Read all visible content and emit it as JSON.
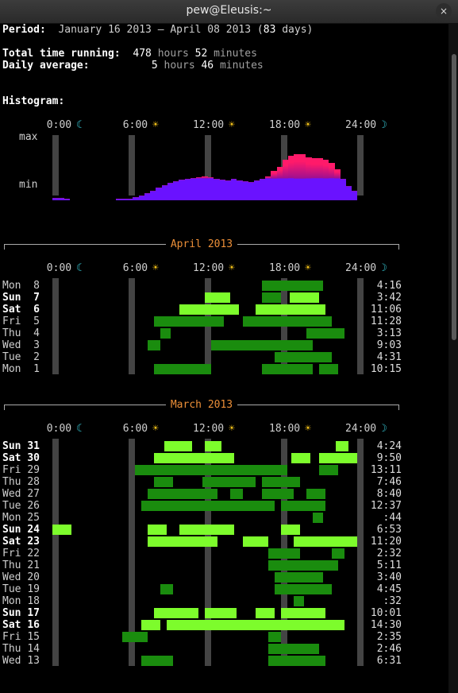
{
  "window": {
    "title": "pew@Eleusis:~",
    "close_symbol": "×"
  },
  "summary": {
    "period_label": "Period:",
    "period_start": "January 16 2013",
    "period_dash": "–",
    "period_end": "April 08 2013",
    "period_days": "83",
    "period_days_unit": "days",
    "total_label": "Total time running:",
    "total_hours": "478",
    "total_minutes": "52",
    "daily_label": "Daily average:",
    "daily_hours": "5",
    "daily_minutes": "46",
    "hours_word": "hours",
    "minutes_word": "minutes"
  },
  "histogram": {
    "label": "Histogram:",
    "max_label": "max",
    "min_label": "min",
    "top_color": "#ff1a6a",
    "bottom_color": "#6a12ff",
    "levels": [
      0.05,
      0.05,
      0.03,
      0,
      0,
      0,
      0,
      0,
      0,
      0,
      0,
      0.03,
      0.03,
      0.03,
      0.07,
      0.1,
      0.15,
      0.2,
      0.27,
      0.32,
      0.37,
      0.4,
      0.43,
      0.45,
      0.47,
      0.48,
      0.5,
      0.48,
      0.45,
      0.43,
      0.42,
      0.45,
      0.42,
      0.4,
      0.38,
      0.42,
      0.45,
      0.5,
      0.62,
      0.7,
      0.85,
      0.93,
      0.97,
      0.97,
      0.9,
      0.88,
      0.88,
      0.85,
      0.78,
      0.65,
      0.45,
      0.3,
      0.2
    ]
  },
  "axis": {
    "ticks": [
      "0:00",
      "6:00",
      "12:00",
      "18:00",
      "24:00"
    ],
    "icons": [
      "moon-icon",
      "sun-icon",
      "sun-icon",
      "sun-icon",
      "moon-icon"
    ],
    "moon_glyph": "☾",
    "moon_end_glyph": "☽",
    "sun_glyph": "☀"
  },
  "colors": {
    "bright_green": "#7dfc2c",
    "dark_green": "#1a8c0e",
    "bar_gray": "#444444",
    "section_label": "#ec8f38"
  },
  "months": [
    {
      "label": "April 2013",
      "days": [
        {
          "dow": "Mon",
          "day": "8",
          "total": "4:16",
          "weekend": false,
          "segs": [
            [
              16.5,
              21.3,
              0
            ]
          ]
        },
        {
          "dow": "Sun",
          "day": "7",
          "total": "3:42",
          "weekend": true,
          "segs": [
            [
              12,
              14,
              1
            ],
            [
              16.5,
              18,
              0
            ],
            [
              18.7,
              21,
              1
            ]
          ]
        },
        {
          "dow": "Sat",
          "day": "6",
          "total": "11:06",
          "weekend": true,
          "segs": [
            [
              10,
              14.7,
              1
            ],
            [
              16,
              21.5,
              1
            ]
          ]
        },
        {
          "dow": "Fri",
          "day": "5",
          "total": "11:28",
          "weekend": false,
          "segs": [
            [
              8,
              13.5,
              0
            ],
            [
              15,
              22,
              0
            ]
          ]
        },
        {
          "dow": "Thu",
          "day": "4",
          "total": "3:13",
          "weekend": false,
          "segs": [
            [
              8.5,
              9.3,
              0
            ],
            [
              20,
              23,
              0
            ]
          ]
        },
        {
          "dow": "Wed",
          "day": "3",
          "total": "9:03",
          "weekend": false,
          "segs": [
            [
              7.5,
              8.5,
              0
            ],
            [
              12.5,
              20.5,
              0
            ]
          ]
        },
        {
          "dow": "Tue",
          "day": "2",
          "total": "4:31",
          "weekend": false,
          "segs": [
            [
              17.5,
              22,
              0
            ]
          ]
        },
        {
          "dow": "Mon",
          "day": "1",
          "total": "10:15",
          "weekend": false,
          "segs": [
            [
              8,
              12.5,
              0
            ],
            [
              16.5,
              20.5,
              0
            ],
            [
              21,
              22.5,
              0
            ]
          ]
        }
      ]
    },
    {
      "label": "March 2013",
      "days": [
        {
          "dow": "Sun",
          "day": "31",
          "total": "4:24",
          "weekend": true,
          "segs": [
            [
              8.8,
              11,
              1
            ],
            [
              12,
              13.3,
              1
            ],
            [
              22.3,
              23.3,
              1
            ]
          ]
        },
        {
          "dow": "Sat",
          "day": "30",
          "total": "9:50",
          "weekend": true,
          "segs": [
            [
              8,
              14.3,
              1
            ],
            [
              18.8,
              20.3,
              1
            ],
            [
              21,
              24,
              1
            ]
          ]
        },
        {
          "dow": "Fri",
          "day": "29",
          "total": "13:11",
          "weekend": false,
          "segs": [
            [
              6.5,
              18.5,
              0
            ],
            [
              21,
              22.5,
              0
            ]
          ]
        },
        {
          "dow": "Thu",
          "day": "28",
          "total": "7:46",
          "weekend": false,
          "segs": [
            [
              8,
              9.5,
              0
            ],
            [
              11.8,
              16,
              0
            ],
            [
              16.5,
              19.5,
              0
            ]
          ]
        },
        {
          "dow": "Wed",
          "day": "27",
          "total": "8:40",
          "weekend": false,
          "segs": [
            [
              7.5,
              13,
              0
            ],
            [
              14,
              15,
              0
            ],
            [
              16.5,
              19,
              0
            ],
            [
              20,
              21.5,
              0
            ]
          ]
        },
        {
          "dow": "Tue",
          "day": "26",
          "total": "12:37",
          "weekend": false,
          "segs": [
            [
              7,
              17.5,
              0
            ],
            [
              18,
              21.5,
              0
            ]
          ]
        },
        {
          "dow": "Mon",
          "day": "25",
          "total": ":44",
          "weekend": false,
          "segs": [
            [
              20.5,
              21.3,
              0
            ]
          ]
        },
        {
          "dow": "Sun",
          "day": "24",
          "total": "6:53",
          "weekend": true,
          "segs": [
            [
              0,
              1.5,
              1
            ],
            [
              7.5,
              9,
              1
            ],
            [
              10,
              14.3,
              1
            ],
            [
              18,
              19.5,
              1
            ]
          ]
        },
        {
          "dow": "Sat",
          "day": "23",
          "total": "11:20",
          "weekend": true,
          "segs": [
            [
              7.5,
              13,
              1
            ],
            [
              15,
              17,
              1
            ],
            [
              19,
              24,
              1
            ]
          ]
        },
        {
          "dow": "Fri",
          "day": "22",
          "total": "2:32",
          "weekend": false,
          "segs": [
            [
              17,
              19.5,
              0
            ],
            [
              22,
              23,
              0
            ]
          ]
        },
        {
          "dow": "Thu",
          "day": "21",
          "total": "5:11",
          "weekend": false,
          "segs": [
            [
              17,
              22.5,
              0
            ]
          ]
        },
        {
          "dow": "Wed",
          "day": "20",
          "total": "3:40",
          "weekend": false,
          "segs": [
            [
              17.5,
              21.3,
              0
            ]
          ]
        },
        {
          "dow": "Tue",
          "day": "19",
          "total": "4:45",
          "weekend": false,
          "segs": [
            [
              8.5,
              9.5,
              0
            ],
            [
              17.5,
              22,
              0
            ]
          ]
        },
        {
          "dow": "Mon",
          "day": "18",
          "total": ":32",
          "weekend": false,
          "segs": [
            [
              19,
              19.8,
              0
            ]
          ]
        },
        {
          "dow": "Sun",
          "day": "17",
          "total": "10:01",
          "weekend": true,
          "segs": [
            [
              8,
              11.5,
              1
            ],
            [
              12,
              14.5,
              1
            ],
            [
              16,
              17.5,
              1
            ],
            [
              18,
              21.5,
              1
            ]
          ]
        },
        {
          "dow": "Sat",
          "day": "16",
          "total": "14:30",
          "weekend": true,
          "segs": [
            [
              7,
              8.5,
              1
            ],
            [
              9,
              23,
              1
            ]
          ]
        },
        {
          "dow": "Fri",
          "day": "15",
          "total": "2:35",
          "weekend": false,
          "segs": [
            [
              5.5,
              7.5,
              0
            ],
            [
              17,
              18,
              0
            ]
          ]
        },
        {
          "dow": "Thu",
          "day": "14",
          "total": "2:46",
          "weekend": false,
          "segs": [
            [
              17,
              21,
              0
            ]
          ]
        },
        {
          "dow": "Wed",
          "day": "13",
          "total": "6:31",
          "weekend": false,
          "segs": [
            [
              7,
              9.5,
              0
            ],
            [
              17,
              21.5,
              0
            ]
          ]
        }
      ]
    }
  ]
}
